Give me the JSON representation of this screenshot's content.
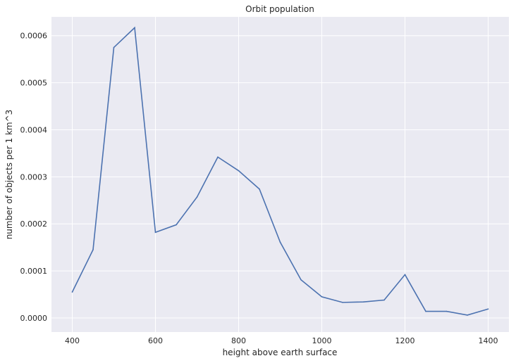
{
  "chart_data": {
    "type": "line",
    "title": "Orbit population",
    "xlabel": "height above earth surface",
    "ylabel": "number of objects per 1 km^3",
    "xlim": [
      350,
      1450
    ],
    "ylim": [
      -3e-05,
      0.00064
    ],
    "xticks": [
      400,
      600,
      800,
      1000,
      1200,
      1400
    ],
    "xtick_labels": [
      "400",
      "600",
      "800",
      "1000",
      "1200",
      "1400"
    ],
    "yticks": [
      0.0,
      0.0001,
      0.0002,
      0.0003,
      0.0004,
      0.0005,
      0.0006
    ],
    "ytick_labels": [
      "0.0000",
      "0.0001",
      "0.0002",
      "0.0003",
      "0.0004",
      "0.0005",
      "0.0006"
    ],
    "grid": true,
    "background_color": "#eaeaf2",
    "line_color": "#4c72b0",
    "x": [
      400,
      450,
      500,
      550,
      600,
      650,
      700,
      750,
      800,
      850,
      900,
      950,
      1000,
      1050,
      1100,
      1150,
      1200,
      1250,
      1300,
      1350,
      1400
    ],
    "y": [
      5.5e-05,
      0.000145,
      0.000575,
      0.000617,
      0.000182,
      0.000198,
      0.000257,
      0.000342,
      0.000313,
      0.000274,
      0.000161,
      8.1e-05,
      4.5e-05,
      3.3e-05,
      3.4e-05,
      3.8e-05,
      9.2e-05,
      1.4e-05,
      1.4e-05,
      6e-06,
      1.9e-05
    ]
  }
}
